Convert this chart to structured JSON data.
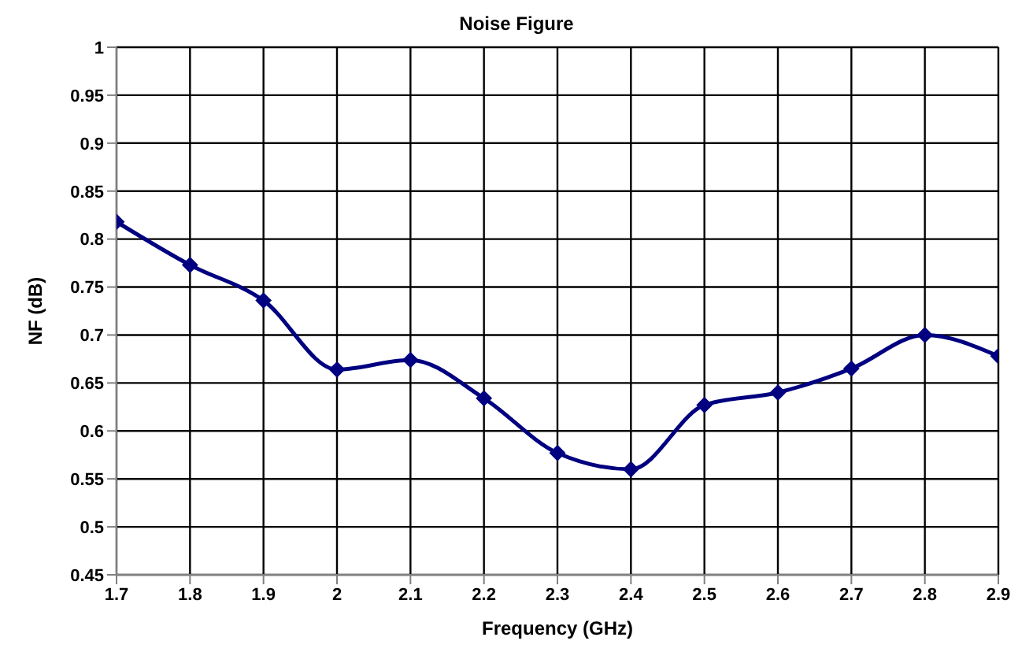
{
  "chart_data": {
    "type": "line",
    "title": "Noise Figure",
    "xlabel": "Frequency (GHz)",
    "ylabel": "NF (dB)",
    "x": [
      1.7,
      1.8,
      1.9,
      2.0,
      2.1,
      2.2,
      2.3,
      2.4,
      2.5,
      2.6,
      2.7,
      2.8,
      2.9
    ],
    "series": [
      {
        "color": "#000080",
        "values": [
          0.818,
          0.773,
          0.736,
          0.664,
          0.674,
          0.634,
          0.577,
          0.56,
          0.627,
          0.64,
          0.665,
          0.7,
          0.678
        ]
      }
    ],
    "xlim": [
      1.7,
      2.9
    ],
    "xticks": [
      1.7,
      1.8,
      1.9,
      2,
      2.1,
      2.2,
      2.3,
      2.4,
      2.5,
      2.6,
      2.7,
      2.8,
      2.9
    ],
    "ylim": [
      0.45,
      1
    ],
    "yticks": [
      0.45,
      0.5,
      0.55,
      0.6,
      0.65,
      0.7,
      0.75,
      0.8,
      0.85,
      0.9,
      0.95,
      1
    ],
    "grid": true,
    "marker": "diamond",
    "line_style": "solid"
  }
}
